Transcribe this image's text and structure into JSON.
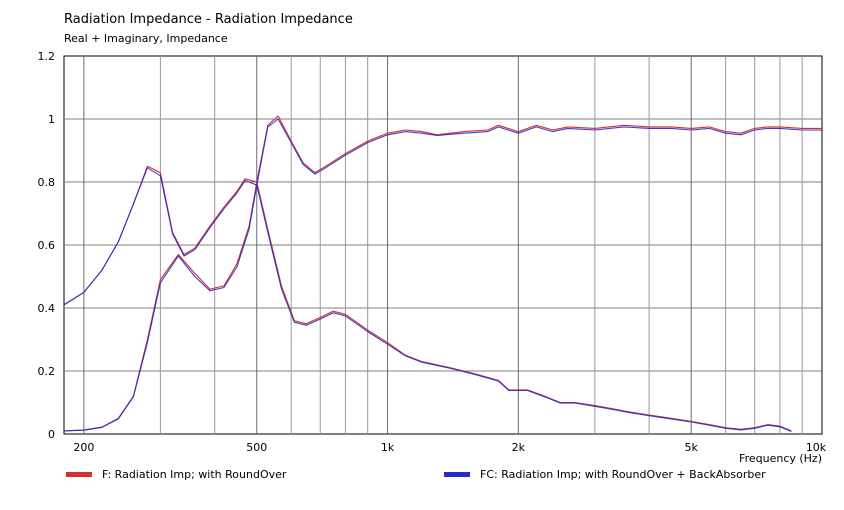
{
  "chart_data": {
    "type": "line",
    "title": "Radiation Impedance - Radiation Impedance",
    "subtitle": "Real + Imaginary, Impedance",
    "xlabel": "Frequency  (Hz)",
    "ylabel": "",
    "xscale": "log",
    "xlim": [
      180,
      10000
    ],
    "ylim": [
      0,
      1.2
    ],
    "grid": true,
    "x_ticks": [
      {
        "value": 200,
        "label": "200"
      },
      {
        "value": 500,
        "label": "500"
      },
      {
        "value": 1000,
        "label": "1k"
      },
      {
        "value": 2000,
        "label": "2k"
      },
      {
        "value": 5000,
        "label": "5k"
      },
      {
        "value": 10000,
        "label": "10k"
      }
    ],
    "y_ticks": [
      {
        "value": 0,
        "label": "0"
      },
      {
        "value": 0.2,
        "label": "0.2"
      },
      {
        "value": 0.4,
        "label": "0.4"
      },
      {
        "value": 0.6,
        "label": "0.6"
      },
      {
        "value": 0.8,
        "label": "0.8"
      },
      {
        "value": 1,
        "label": "1"
      },
      {
        "value": 1.2,
        "label": "1.2"
      }
    ],
    "minor_x_grid": [
      300,
      400,
      600,
      700,
      800,
      900,
      3000,
      4000,
      6000,
      7000,
      8000,
      9000
    ],
    "legend_position": "bottom",
    "series": [
      {
        "name": "F: Radiation Imp;  with RoundOver",
        "color": "#d03030",
        "real": [
          [
            180,
            0.01
          ],
          [
            200,
            0.013
          ],
          [
            220,
            0.022
          ],
          [
            240,
            0.05
          ],
          [
            260,
            0.12
          ],
          [
            280,
            0.3
          ],
          [
            300,
            0.49
          ],
          [
            330,
            0.57
          ],
          [
            360,
            0.51
          ],
          [
            390,
            0.46
          ],
          [
            420,
            0.47
          ],
          [
            450,
            0.54
          ],
          [
            480,
            0.66
          ],
          [
            500,
            0.8
          ],
          [
            530,
            0.65
          ],
          [
            570,
            0.47
          ],
          [
            610,
            0.36
          ],
          [
            650,
            0.35
          ],
          [
            700,
            0.37
          ],
          [
            750,
            0.39
          ],
          [
            800,
            0.38
          ],
          [
            900,
            0.33
          ],
          [
            1000,
            0.29
          ],
          [
            1100,
            0.25
          ],
          [
            1200,
            0.23
          ],
          [
            1400,
            0.21
          ],
          [
            1600,
            0.19
          ],
          [
            1800,
            0.17
          ],
          [
            1900,
            0.14
          ],
          [
            2100,
            0.14
          ],
          [
            2300,
            0.12
          ],
          [
            2500,
            0.1
          ],
          [
            2700,
            0.1
          ],
          [
            3000,
            0.09
          ],
          [
            3300,
            0.08
          ],
          [
            3600,
            0.07
          ],
          [
            4000,
            0.06
          ],
          [
            4500,
            0.05
          ],
          [
            5000,
            0.04
          ],
          [
            5500,
            0.03
          ],
          [
            6000,
            0.02
          ],
          [
            6500,
            0.015
          ],
          [
            7000,
            0.02
          ],
          [
            7500,
            0.03
          ],
          [
            8000,
            0.025
          ],
          [
            8500,
            0.01
          ]
        ],
        "imag": [
          [
            180,
            0.41
          ],
          [
            200,
            0.45
          ],
          [
            220,
            0.52
          ],
          [
            240,
            0.61
          ],
          [
            260,
            0.73
          ],
          [
            280,
            0.85
          ],
          [
            300,
            0.83
          ],
          [
            320,
            0.64
          ],
          [
            340,
            0.57
          ],
          [
            360,
            0.59
          ],
          [
            390,
            0.66
          ],
          [
            420,
            0.72
          ],
          [
            450,
            0.77
          ],
          [
            470,
            0.81
          ],
          [
            500,
            0.8
          ],
          [
            530,
            0.98
          ],
          [
            560,
            1.01
          ],
          [
            600,
            0.93
          ],
          [
            640,
            0.86
          ],
          [
            680,
            0.83
          ],
          [
            720,
            0.85
          ],
          [
            800,
            0.89
          ],
          [
            900,
            0.93
          ],
          [
            1000,
            0.955
          ],
          [
            1100,
            0.965
          ],
          [
            1200,
            0.96
          ],
          [
            1300,
            0.95
          ],
          [
            1500,
            0.96
          ],
          [
            1700,
            0.965
          ],
          [
            1800,
            0.98
          ],
          [
            2000,
            0.96
          ],
          [
            2200,
            0.98
          ],
          [
            2400,
            0.965
          ],
          [
            2600,
            0.975
          ],
          [
            3000,
            0.97
          ],
          [
            3500,
            0.98
          ],
          [
            4000,
            0.975
          ],
          [
            4500,
            0.975
          ],
          [
            5000,
            0.97
          ],
          [
            5500,
            0.975
          ],
          [
            6000,
            0.96
          ],
          [
            6500,
            0.955
          ],
          [
            7000,
            0.97
          ],
          [
            7500,
            0.975
          ],
          [
            8000,
            0.975
          ],
          [
            9000,
            0.97
          ],
          [
            10000,
            0.97
          ]
        ]
      },
      {
        "name": "FC: Radiation Imp;  with RoundOver + BackAbsorber",
        "color": "#2828c8",
        "real": [
          [
            180,
            0.01
          ],
          [
            200,
            0.012
          ],
          [
            220,
            0.021
          ],
          [
            240,
            0.048
          ],
          [
            260,
            0.118
          ],
          [
            280,
            0.29
          ],
          [
            300,
            0.48
          ],
          [
            330,
            0.565
          ],
          [
            360,
            0.5
          ],
          [
            390,
            0.455
          ],
          [
            420,
            0.465
          ],
          [
            450,
            0.53
          ],
          [
            480,
            0.65
          ],
          [
            500,
            0.79
          ],
          [
            530,
            0.64
          ],
          [
            570,
            0.46
          ],
          [
            610,
            0.355
          ],
          [
            650,
            0.345
          ],
          [
            700,
            0.365
          ],
          [
            750,
            0.385
          ],
          [
            800,
            0.375
          ],
          [
            900,
            0.325
          ],
          [
            1000,
            0.285
          ],
          [
            1100,
            0.248
          ],
          [
            1200,
            0.228
          ],
          [
            1400,
            0.208
          ],
          [
            1600,
            0.188
          ],
          [
            1800,
            0.168
          ],
          [
            1900,
            0.138
          ],
          [
            2100,
            0.138
          ],
          [
            2300,
            0.118
          ],
          [
            2500,
            0.098
          ],
          [
            2700,
            0.098
          ],
          [
            3000,
            0.088
          ],
          [
            3300,
            0.078
          ],
          [
            3600,
            0.068
          ],
          [
            4000,
            0.058
          ],
          [
            4500,
            0.048
          ],
          [
            5000,
            0.038
          ],
          [
            5500,
            0.028
          ],
          [
            6000,
            0.018
          ],
          [
            6500,
            0.013
          ],
          [
            7000,
            0.018
          ],
          [
            7500,
            0.028
          ],
          [
            8000,
            0.023
          ],
          [
            8500,
            0.008
          ]
        ],
        "imag": [
          [
            180,
            0.41
          ],
          [
            200,
            0.45
          ],
          [
            220,
            0.52
          ],
          [
            240,
            0.61
          ],
          [
            260,
            0.73
          ],
          [
            280,
            0.845
          ],
          [
            300,
            0.82
          ],
          [
            320,
            0.635
          ],
          [
            340,
            0.565
          ],
          [
            360,
            0.585
          ],
          [
            390,
            0.655
          ],
          [
            420,
            0.715
          ],
          [
            450,
            0.765
          ],
          [
            470,
            0.805
          ],
          [
            500,
            0.79
          ],
          [
            530,
            0.975
          ],
          [
            560,
            1.0
          ],
          [
            600,
            0.925
          ],
          [
            640,
            0.855
          ],
          [
            680,
            0.825
          ],
          [
            720,
            0.845
          ],
          [
            800,
            0.885
          ],
          [
            900,
            0.925
          ],
          [
            1000,
            0.95
          ],
          [
            1100,
            0.96
          ],
          [
            1200,
            0.955
          ],
          [
            1300,
            0.948
          ],
          [
            1500,
            0.955
          ],
          [
            1700,
            0.96
          ],
          [
            1800,
            0.975
          ],
          [
            2000,
            0.955
          ],
          [
            2200,
            0.975
          ],
          [
            2400,
            0.96
          ],
          [
            2600,
            0.97
          ],
          [
            3000,
            0.965
          ],
          [
            3500,
            0.975
          ],
          [
            4000,
            0.97
          ],
          [
            4500,
            0.97
          ],
          [
            5000,
            0.965
          ],
          [
            5500,
            0.97
          ],
          [
            6000,
            0.955
          ],
          [
            6500,
            0.95
          ],
          [
            7000,
            0.965
          ],
          [
            7500,
            0.97
          ],
          [
            8000,
            0.97
          ],
          [
            9000,
            0.965
          ],
          [
            10000,
            0.965
          ]
        ]
      }
    ]
  }
}
